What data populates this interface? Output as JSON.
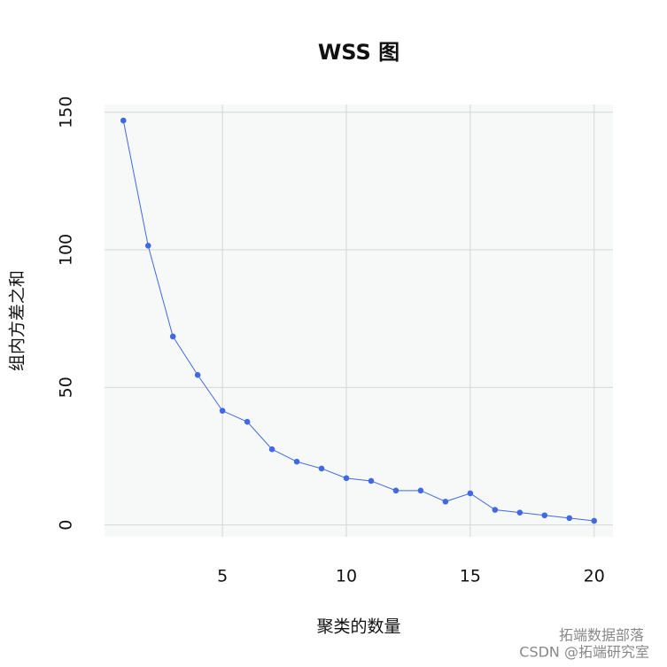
{
  "chart_data": {
    "type": "line",
    "title": "WSS 图",
    "x_label": "聚类的数量",
    "y_label": "组内方差之和",
    "x": [
      1,
      2,
      3,
      4,
      5,
      6,
      7,
      8,
      9,
      10,
      11,
      12,
      13,
      14,
      15,
      16,
      17,
      18,
      19,
      20
    ],
    "series": [
      {
        "color": "#4169e1",
        "values": [
          147,
          101.5,
          68.5,
          54.5,
          41.5,
          37.5,
          27.5,
          23,
          20.5,
          17,
          16,
          12.5,
          12.5,
          8.5,
          11.5,
          5.5,
          4.5,
          3.5,
          2.5,
          1.5
        ]
      }
    ],
    "xlim": [
      0.24,
      20.76
    ],
    "ylim": [
      -4.3,
      152.8
    ],
    "xticks": [
      5,
      10,
      15,
      20
    ],
    "yticks": [
      0,
      50,
      100,
      150
    ],
    "grid": true,
    "watermark": [
      "拓端数据部落",
      "CSDN @拓端研究室"
    ]
  }
}
